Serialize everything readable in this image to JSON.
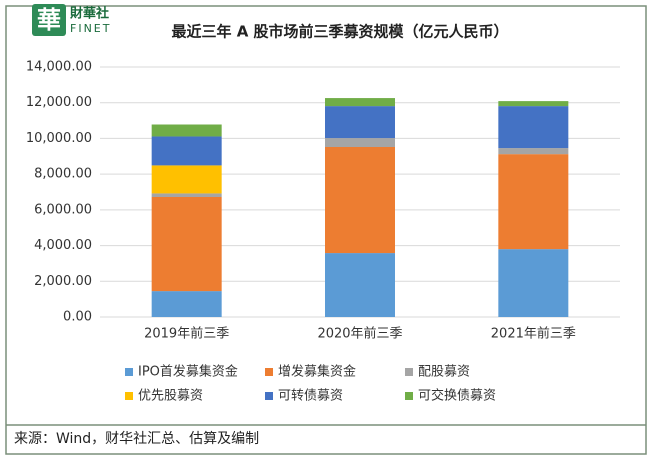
{
  "header": {
    "logo_mark": "華",
    "logo_text": "財華社",
    "logo_sub": "FINET"
  },
  "chart_data": {
    "type": "stacked-bar",
    "title": "最近三年 A 股市场前三季募资规模（亿元人民币）",
    "categories": [
      "2019年前三季",
      "2020年前三季",
      "2021年前三季"
    ],
    "series": [
      {
        "name": "IPO首发募集资金",
        "color": "#5b9bd5",
        "values": [
          1450,
          3580,
          3800
        ]
      },
      {
        "name": "增发募集资金",
        "color": "#ed7d31",
        "values": [
          5270,
          5940,
          5320
        ]
      },
      {
        "name": "配股募资",
        "color": "#a5a5a5",
        "values": [
          200,
          500,
          340
        ]
      },
      {
        "name": "优先股募资",
        "color": "#ffc000",
        "values": [
          1570,
          0,
          0
        ]
      },
      {
        "name": "可转债募资",
        "color": "#4472c4",
        "values": [
          1620,
          1790,
          2350
        ]
      },
      {
        "name": "可交换债募资",
        "color": "#70ad47",
        "values": [
          670,
          450,
          280
        ]
      }
    ],
    "ylim": [
      0,
      14000
    ],
    "yticks": [
      {
        "value": 0,
        "label": "0.00"
      },
      {
        "value": 2000,
        "label": "2,000.00"
      },
      {
        "value": 4000,
        "label": "4,000.00"
      },
      {
        "value": 6000,
        "label": "6,000.00"
      },
      {
        "value": 8000,
        "label": "8,000.00"
      },
      {
        "value": 10000,
        "label": "10,000.00"
      },
      {
        "value": 12000,
        "label": "12,000.00"
      },
      {
        "value": 14000,
        "label": "14,000.00"
      }
    ],
    "grid": true
  },
  "footer": {
    "source": "来源：Wind，财华社汇总、估算及编制"
  }
}
